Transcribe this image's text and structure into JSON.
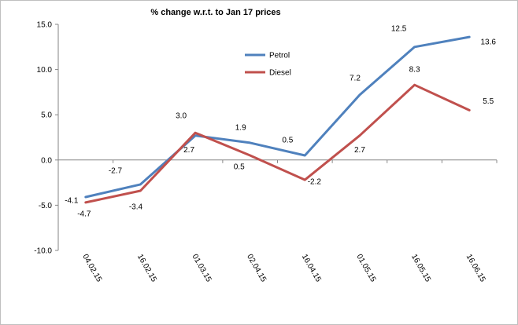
{
  "chart_data": {
    "type": "line",
    "title": "% change w.r.t. to Jan 17 prices",
    "categories": [
      "04.02.15",
      "16.02.15",
      "01.03.15",
      "02.04.15",
      "16.04.15",
      "01.05.15",
      "16.05.15",
      "16.06.15"
    ],
    "series": [
      {
        "name": "Petrol",
        "color": "#4f81bd",
        "values": [
          -4.1,
          -2.7,
          2.7,
          1.9,
          0.5,
          7.2,
          12.5,
          13.6
        ],
        "labels": [
          "-4.1",
          "-2.7",
          "2.7",
          "1.9",
          "0.5",
          "7.2",
          "12.5",
          "13.6"
        ]
      },
      {
        "name": "Diesel",
        "color": "#c0504d",
        "values": [
          -4.7,
          -3.4,
          3.0,
          0.5,
          -2.2,
          2.7,
          8.3,
          5.5
        ],
        "labels": [
          "-4.7",
          "-3.4",
          "3.0",
          "0.5",
          "-2.2",
          "2.7",
          "8.3",
          "5.5"
        ]
      }
    ],
    "yticks": [
      "15.0",
      "10.0",
      "5.0",
      "0.0",
      "-5.0",
      "-10.0"
    ],
    "ylim": [
      -10,
      15
    ],
    "legend_position": "top-center",
    "grid": false
  }
}
